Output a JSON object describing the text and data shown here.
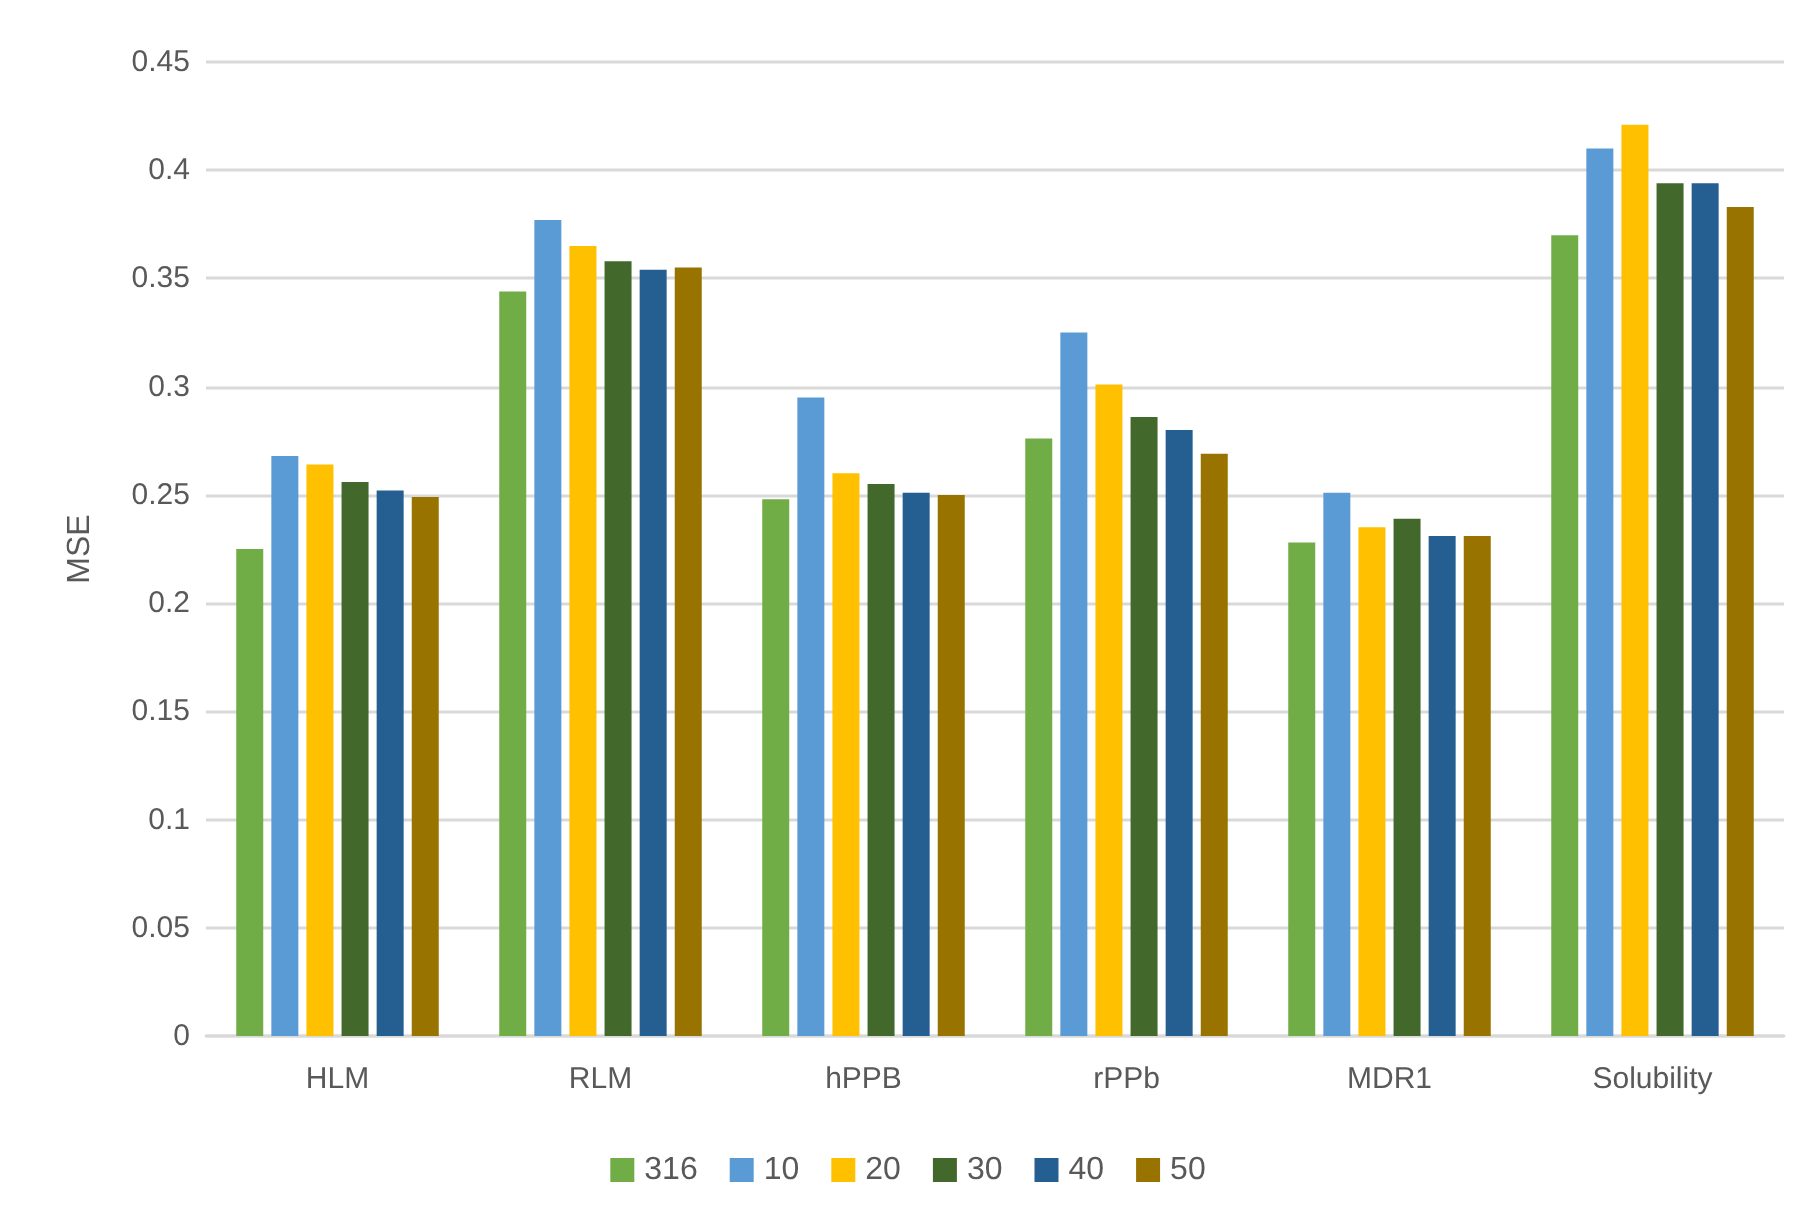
{
  "chart_data": {
    "type": "bar",
    "ylabel": "MSE",
    "categories": [
      "HLM",
      "RLM",
      "hPPB",
      "rPPb",
      "MDR1",
      "Solubility"
    ],
    "series": [
      {
        "name": "316",
        "color": "#70ad47",
        "values": [
          0.225,
          0.344,
          0.248,
          0.276,
          0.228,
          0.37
        ]
      },
      {
        "name": "10",
        "color": "#5b9bd5",
        "values": [
          0.268,
          0.377,
          0.295,
          0.325,
          0.251,
          0.41
        ]
      },
      {
        "name": "20",
        "color": "#ffc000",
        "values": [
          0.264,
          0.365,
          0.26,
          0.301,
          0.235,
          0.421
        ]
      },
      {
        "name": "30",
        "color": "#43682b",
        "values": [
          0.256,
          0.358,
          0.255,
          0.286,
          0.239,
          0.394
        ]
      },
      {
        "name": "40",
        "color": "#255e91",
        "values": [
          0.252,
          0.354,
          0.251,
          0.28,
          0.231,
          0.394
        ]
      },
      {
        "name": "50",
        "color": "#997300",
        "values": [
          0.249,
          0.355,
          0.25,
          0.269,
          0.231,
          0.383
        ]
      }
    ],
    "ylim": [
      0,
      0.45
    ],
    "yticks": [
      0,
      0.05,
      0.1,
      0.15,
      0.2,
      0.25,
      0.3,
      0.35,
      0.4,
      0.45
    ],
    "grid": "y",
    "legend": "bottom"
  }
}
